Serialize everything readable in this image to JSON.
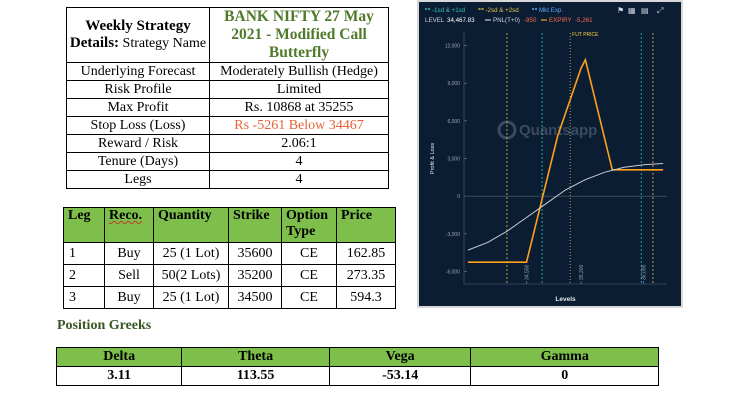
{
  "details": {
    "title_label_bold": "Weekly Strategy Details:",
    "title_label_rest": " Strategy Name",
    "strategy_name": "BANK NIFTY 27 May 2021 - Modified Call Butterfly",
    "rows": [
      {
        "label": "Underlying Forecast",
        "value": "Moderately Bullish (Hedge)"
      },
      {
        "label": "Risk Profile",
        "value": "Limited"
      },
      {
        "label": "Max Profit",
        "value": "Rs. 10868 at 35255"
      },
      {
        "label": "Stop Loss (Loss)",
        "value": "Rs -5261 Below 34467"
      },
      {
        "label": "Reward / Risk",
        "value": "2.06:1"
      },
      {
        "label": "Tenure (Days)",
        "value": "4"
      },
      {
        "label": "Legs",
        "value": "4"
      }
    ]
  },
  "legs": {
    "headers": [
      "Leg",
      "Reco.",
      "Quantity",
      "Strike",
      "Option Type",
      "Price"
    ],
    "rows": [
      [
        "1",
        "Buy",
        "25 (1 Lot)",
        "35600",
        "CE",
        "162.85"
      ],
      [
        "2",
        "Sell",
        "50(2 Lots)",
        "35200",
        "CE",
        "273.35"
      ],
      [
        "3",
        "Buy",
        "25 (1 Lot)",
        "34500",
        "CE",
        "594.3"
      ]
    ]
  },
  "greeks": {
    "title": "Position Greeks",
    "headers": [
      "Delta",
      "Theta",
      "Vega",
      "Gamma"
    ],
    "values": [
      "3.11",
      "113.55",
      "-53.14",
      "0"
    ]
  },
  "chart_data": {
    "type": "line",
    "legend": {
      "items": [
        {
          "label": "-1sd & +1sd",
          "color": "#2ec4b6"
        },
        {
          "label": "-2sd & +2sd",
          "color": "#e8c547"
        },
        {
          "label": "Mkt Exp.",
          "color": "#5fa8ff"
        }
      ]
    },
    "status": {
      "level_label": "LEVEL",
      "level_value": "34,467.83",
      "pnl_label": "PNL(T+0)",
      "pnl_value": "-950",
      "expiry_label": "EXPIRY",
      "expiry_value": "-5,261"
    },
    "fut_price_label": "FUT PRICE",
    "watermark": "Quantsapp",
    "xlabel": "Levels",
    "ylabel": "Profit & Loss",
    "xlim": [
      33700,
      36300
    ],
    "ylim": [
      -7000,
      13000
    ],
    "yticks": [
      12000,
      9000,
      6000,
      3000,
      0,
      -3000,
      -6000
    ],
    "ytick_labels": [
      "12,000",
      "9,000",
      "6,000",
      "3,000",
      "0",
      "-3,000",
      "-6,000"
    ],
    "xticks": [
      34500,
      35200,
      36000
    ],
    "xtick_labels": [
      "34,500",
      "35,200",
      "36,000"
    ],
    "sd1_lines": [
      34700,
      35970
    ],
    "sd2_lines": [
      34250,
      36120
    ],
    "fut_price": 35060,
    "series": [
      {
        "name": "Expiry",
        "color": "#ff9f1c",
        "x": [
          33750,
          34500,
          34900,
          35200,
          35255,
          35600,
          36250
        ],
        "y": [
          -5261,
          -5261,
          4800,
          10200,
          10868,
          2100,
          2100
        ]
      },
      {
        "name": "T+0",
        "color": "#c9cdd3",
        "x": [
          33750,
          34000,
          34250,
          34500,
          34750,
          35000,
          35250,
          35500,
          35750,
          36000,
          36250
        ],
        "y": [
          -4300,
          -3700,
          -2800,
          -1700,
          -600,
          500,
          1300,
          1900,
          2300,
          2500,
          2600
        ]
      }
    ]
  }
}
